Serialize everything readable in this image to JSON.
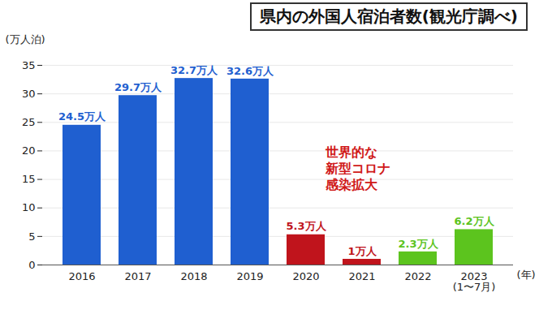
{
  "chart_data": {
    "type": "bar",
    "title": "県内の外国人宿泊者数(観光庁調べ)",
    "x_label": "(年)",
    "y_label": "(万人泊)",
    "categories": [
      "2016",
      "2017",
      "2018",
      "2019",
      "2020",
      "2021",
      "2022",
      "2023\n(1〜7月)"
    ],
    "values": [
      24.5,
      29.7,
      32.7,
      32.6,
      5.3,
      1,
      2.3,
      6.2
    ],
    "value_labels": [
      "24.5万人",
      "29.7万人",
      "32.7万人",
      "32.6万人",
      "5.3万人",
      "1万人",
      "2.3万人",
      "6.2万人"
    ],
    "colors": [
      "#1f5fd0",
      "#1f5fd0",
      "#1f5fd0",
      "#1f5fd0",
      "#c0141c",
      "#c0141c",
      "#5cc41e",
      "#5cc41e"
    ],
    "annotations": [
      "世界的な\n新型コロナ\n感染拡大"
    ],
    "ylim": [
      0,
      35
    ],
    "yticks": [
      0,
      5,
      10,
      15,
      20,
      25,
      30,
      35
    ],
    "grid": true,
    "data_labels": true
  }
}
